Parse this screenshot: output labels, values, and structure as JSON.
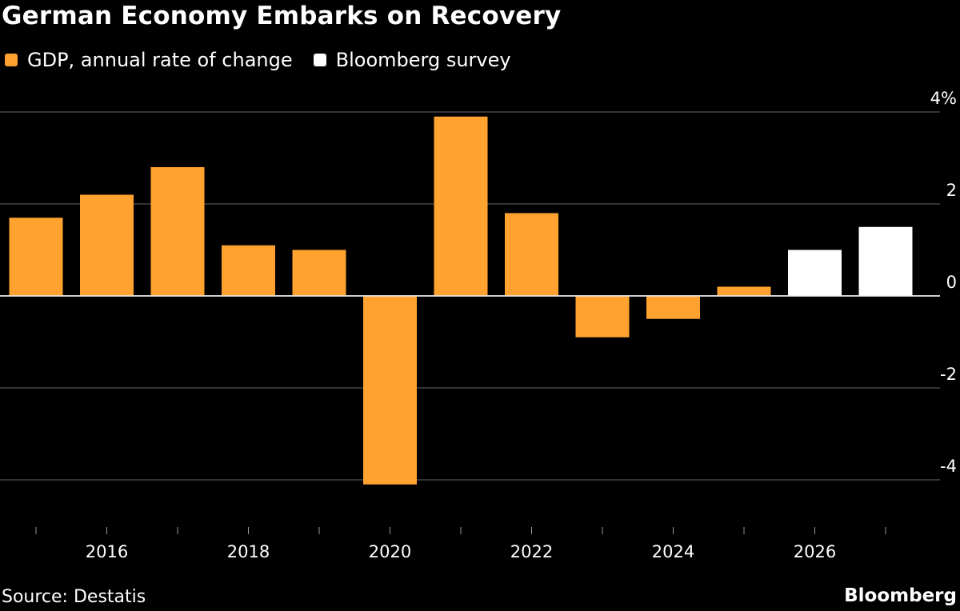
{
  "chart_data": {
    "type": "bar",
    "title": "German Economy Embarks on Recovery",
    "xlabel": "",
    "ylabel": "",
    "ylim": [
      -5,
      4
    ],
    "y_ticks": [
      4,
      2,
      0,
      -2,
      -4
    ],
    "y_tick_labels": [
      "4%",
      "2",
      "0",
      "-2",
      "-4"
    ],
    "categories": [
      "2015",
      "2016",
      "2017",
      "2018",
      "2019",
      "2020",
      "2021",
      "2022",
      "2023",
      "2024",
      "2025",
      "2026",
      "2027"
    ],
    "x_tick_labels": [
      "2016",
      "2018",
      "2020",
      "2022",
      "2024",
      "2026"
    ],
    "series": [
      {
        "name": "GDP, annual rate of change",
        "color": "#FFA22F",
        "values": [
          1.7,
          2.2,
          2.8,
          1.1,
          1.0,
          -4.1,
          3.9,
          1.8,
          -0.9,
          -0.5,
          0.2,
          null,
          null
        ]
      },
      {
        "name": "Bloomberg survey",
        "color": "#FFFFFF",
        "values": [
          null,
          null,
          null,
          null,
          null,
          null,
          null,
          null,
          null,
          null,
          null,
          1.0,
          1.5
        ]
      }
    ],
    "grid": true,
    "legend": "top-left",
    "source": "Source: Destatis",
    "brand": "Bloomberg"
  }
}
